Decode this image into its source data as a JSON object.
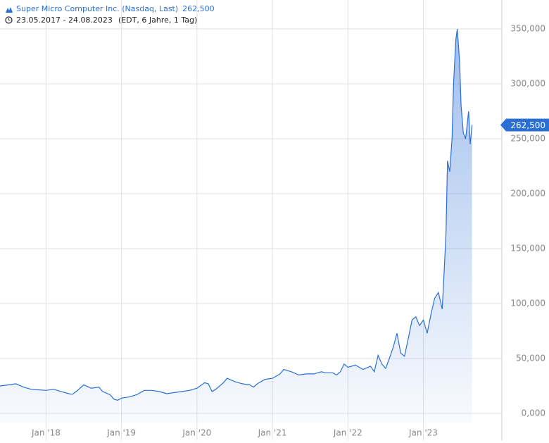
{
  "chart_data": {
    "type": "area",
    "title": "Super Micro Computer Inc. (Nasdaq, Last)",
    "date_range": "23.05.2017 - 24.08.2023",
    "subtitle": "(EDT, 6 Jahre, 1 Tag)",
    "last_price": {
      "value": 262500,
      "label": "262,500"
    },
    "color": "#2a6fd6",
    "grid": true,
    "xlim": [
      2017.39,
      2024.04
    ],
    "ylim": [
      -8300,
      376300
    ],
    "xticks": [
      {
        "value": 2018,
        "label": "Jan '18"
      },
      {
        "value": 2019,
        "label": "Jan '19"
      },
      {
        "value": 2020,
        "label": "Jan '20"
      },
      {
        "value": 2021,
        "label": "Jan '21"
      },
      {
        "value": 2022,
        "label": "Jan '22"
      },
      {
        "value": 2023,
        "label": "Jan '23"
      }
    ],
    "yticks": [
      {
        "value": 0,
        "label": "0,000"
      },
      {
        "value": 50000,
        "label": "50,000"
      },
      {
        "value": 100000,
        "label": "100,000"
      },
      {
        "value": 150000,
        "label": "150,000"
      },
      {
        "value": 200000,
        "label": "200,000"
      },
      {
        "value": 250000,
        "label": "250,000"
      },
      {
        "value": 300000,
        "label": "300,000"
      },
      {
        "value": 350000,
        "label": "350,000"
      }
    ],
    "x": [
      2017.39,
      2017.5,
      2017.6,
      2017.7,
      2017.8,
      2017.9,
      2018.0,
      2018.1,
      2018.2,
      2018.3,
      2018.35,
      2018.4,
      2018.5,
      2018.6,
      2018.7,
      2018.75,
      2018.85,
      2018.9,
      2018.95,
      2019.0,
      2019.1,
      2019.2,
      2019.3,
      2019.4,
      2019.5,
      2019.6,
      2019.7,
      2019.8,
      2019.9,
      2020.0,
      2020.1,
      2020.15,
      2020.2,
      2020.25,
      2020.35,
      2020.4,
      2020.5,
      2020.6,
      2020.7,
      2020.75,
      2020.8,
      2020.9,
      2021.0,
      2021.1,
      2021.15,
      2021.25,
      2021.35,
      2021.45,
      2021.55,
      2021.65,
      2021.7,
      2021.8,
      2021.85,
      2021.9,
      2021.95,
      2022.0,
      2022.1,
      2022.2,
      2022.3,
      2022.35,
      2022.4,
      2022.45,
      2022.5,
      2022.55,
      2022.6,
      2022.65,
      2022.7,
      2022.75,
      2022.8,
      2022.85,
      2022.9,
      2022.95,
      2023.0,
      2023.05,
      2023.1,
      2023.15,
      2023.2,
      2023.25,
      2023.28,
      2023.3,
      2023.32,
      2023.35,
      2023.38,
      2023.4,
      2023.43,
      2023.45,
      2023.48,
      2023.5,
      2023.53,
      2023.56,
      2023.6,
      2023.62,
      2023.645
    ],
    "values": [
      25000,
      26000,
      27000,
      24000,
      22000,
      21500,
      21000,
      22000,
      20000,
      18000,
      17500,
      20000,
      26000,
      23000,
      24000,
      20000,
      17000,
      13000,
      12000,
      14000,
      15000,
      17000,
      21000,
      21000,
      20000,
      18000,
      19000,
      20000,
      21000,
      23000,
      28000,
      27000,
      20000,
      22000,
      28000,
      32000,
      29000,
      27000,
      26000,
      24000,
      27000,
      31000,
      32000,
      36000,
      40000,
      38000,
      35000,
      36000,
      36000,
      38000,
      37000,
      37000,
      35000,
      38000,
      45000,
      42000,
      44000,
      40000,
      43000,
      38000,
      53000,
      45000,
      41000,
      50000,
      60000,
      73000,
      55000,
      52000,
      68000,
      85000,
      88000,
      80000,
      85000,
      73000,
      90000,
      105000,
      110000,
      95000,
      135000,
      165000,
      230000,
      220000,
      250000,
      300000,
      340000,
      350000,
      320000,
      280000,
      255000,
      250000,
      275000,
      245000,
      262500
    ]
  }
}
